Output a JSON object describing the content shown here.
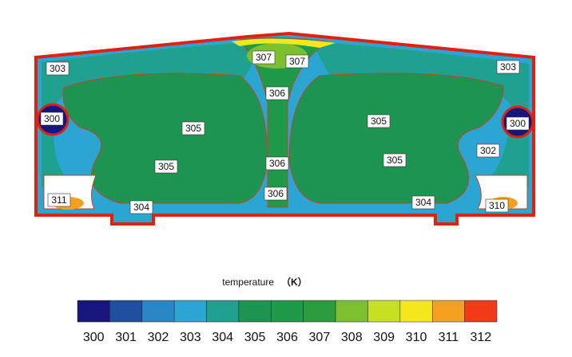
{
  "chart_data": {
    "type": "contour",
    "contour_labels": [
      303,
      307,
      307,
      303,
      306,
      300,
      305,
      305,
      300,
      302,
      305,
      306,
      305,
      311,
      306,
      304,
      304,
      310
    ],
    "colorbar_title": "temperature",
    "colorbar_unit": "（K）",
    "levels": [
      300,
      301,
      302,
      303,
      304,
      305,
      306,
      307,
      308,
      309,
      310,
      311,
      312
    ],
    "colors": [
      "#16167c",
      "#1f4f9e",
      "#2a86c4",
      "#2ba6d2",
      "#20a08e",
      "#1e9452",
      "#1f9a48",
      "#2c9b3c",
      "#7cc030",
      "#c8e022",
      "#f4e81c",
      "#f4a020",
      "#f23a18"
    ]
  }
}
